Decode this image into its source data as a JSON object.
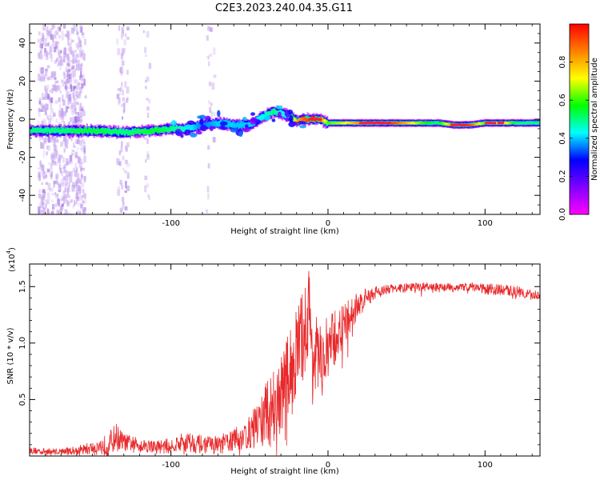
{
  "figure": {
    "title": "C2E3.2023.240.04.35.G11"
  },
  "chart_data": [
    {
      "type": "heatmap",
      "xlabel": "Height of straight line (km)",
      "ylabel": "Frequency (Hz)",
      "xlim": [
        -190,
        135
      ],
      "ylim": [
        -50,
        50
      ],
      "xticks": [
        -100,
        0,
        100
      ],
      "yticks": [
        -40,
        -20,
        0,
        20,
        40
      ],
      "colorbar": {
        "label": "Normalized spectral amplitude",
        "range": [
          0,
          1
        ],
        "ticks": [
          0.0,
          0.2,
          0.4,
          0.6,
          0.8
        ],
        "colormap": [
          "#ff00ff",
          "#8000ff",
          "#0000ff",
          "#00ffff",
          "#00ff00",
          "#ffff00",
          "#ff8000",
          "#ff0000"
        ]
      },
      "ridge": {
        "x": [
          -190,
          -170,
          -150,
          -130,
          -110,
          -100,
          -90,
          -80,
          -70,
          -60,
          -50,
          -40,
          -35,
          -30,
          -25,
          -20,
          -15,
          -10,
          -5,
          0,
          10,
          20,
          30,
          40,
          50,
          60,
          70,
          80,
          90,
          100,
          110,
          120,
          135
        ],
        "freq": [
          -6,
          -6,
          -6,
          -7,
          -6,
          -5,
          -5,
          -3,
          -2,
          -3,
          -3,
          2,
          4,
          3,
          2,
          -1,
          0,
          0,
          0,
          -2,
          -2,
          -2,
          -2,
          -2,
          -2,
          -2,
          -2,
          -3,
          -3,
          -2,
          -2,
          -2,
          -2
        ],
        "amplitude": [
          0.5,
          0.5,
          0.55,
          0.5,
          0.55,
          0.5,
          0.45,
          0.35,
          0.4,
          0.4,
          0.4,
          0.45,
          0.5,
          0.45,
          0.4,
          0.8,
          0.9,
          0.95,
          0.9,
          0.6,
          0.7,
          0.85,
          0.95,
          0.95,
          0.8,
          0.6,
          0.5,
          0.9,
          0.95,
          0.6,
          0.85,
          0.5,
          0.5
        ]
      }
    },
    {
      "type": "line",
      "xlabel": "Height of straight line (km)",
      "ylabel": "SNR (10 * v/v)",
      "yscale_label": "(x10",
      "yscale_exp": "4",
      "yscale_close": ")",
      "xlim": [
        -190,
        135
      ],
      "ylim": [
        0,
        1.7
      ],
      "xticks": [
        -100,
        0,
        100
      ],
      "yticks": [
        0.5,
        1.0,
        1.5
      ],
      "color": "#e8282a",
      "series": [
        {
          "x": [
            -190,
            -180,
            -170,
            -160,
            -150,
            -140,
            -135,
            -130,
            -120,
            -110,
            -100,
            -90,
            -80,
            -70,
            -60,
            -50,
            -40,
            -30,
            -25,
            -20,
            -15,
            -12,
            -10,
            -5,
            0,
            10,
            20,
            30,
            40,
            50,
            60,
            70,
            80,
            90,
            100,
            110,
            120,
            130,
            135
          ],
          "values": [
            0.05,
            0.04,
            0.04,
            0.05,
            0.07,
            0.1,
            0.17,
            0.12,
            0.1,
            0.08,
            0.09,
            0.13,
            0.1,
            0.1,
            0.14,
            0.2,
            0.35,
            0.55,
            0.7,
            0.9,
            1.1,
            1.3,
            0.9,
            0.8,
            0.95,
            1.15,
            1.35,
            1.45,
            1.48,
            1.49,
            1.5,
            1.49,
            1.49,
            1.5,
            1.48,
            1.47,
            1.46,
            1.43,
            1.42
          ],
          "noise": [
            0.03,
            0.03,
            0.03,
            0.04,
            0.06,
            0.1,
            0.13,
            0.08,
            0.06,
            0.06,
            0.07,
            0.1,
            0.08,
            0.08,
            0.1,
            0.15,
            0.3,
            0.35,
            0.4,
            0.45,
            0.4,
            0.4,
            0.45,
            0.35,
            0.3,
            0.2,
            0.12,
            0.06,
            0.04,
            0.04,
            0.04,
            0.04,
            0.04,
            0.04,
            0.05,
            0.05,
            0.05,
            0.04,
            0.04
          ]
        }
      ]
    }
  ]
}
